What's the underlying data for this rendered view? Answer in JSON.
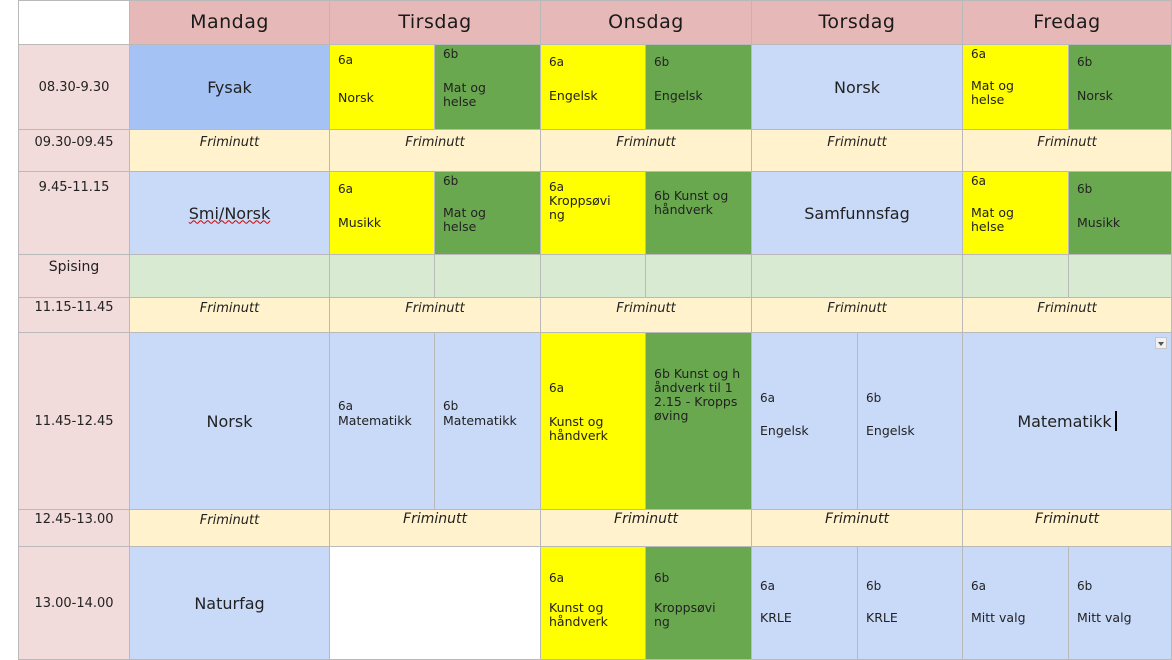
{
  "days": [
    "Mandag",
    "Tirsdag",
    "Onsdag",
    "Torsdag",
    "Fredag"
  ],
  "times": [
    "08.30-9.30",
    "09.30-09.45",
    "9.45-11.15",
    "Spising",
    "11.15-11.45",
    "11.45-12.45",
    "12.45-13.00",
    "13.00-14.00"
  ],
  "break_label": "Friminutt",
  "row1": {
    "mon": "Fysak",
    "tue_a_tag": "6a",
    "tue_a_subj": "Norsk",
    "tue_b_tag": "6b",
    "tue_b_subj": "Mat og helse",
    "wed_a_tag": "6a",
    "wed_a_subj": "Engelsk",
    "wed_b_tag": "6b",
    "wed_b_subj": "Engelsk",
    "thu": "Norsk",
    "fri_a_tag": "6a",
    "fri_a_subj": "Mat og helse",
    "fri_b_tag": "6b",
    "fri_b_subj": "Norsk"
  },
  "row3": {
    "mon": "Smi/Norsk",
    "tue_a_tag": "6a",
    "tue_a_subj": "Musikk",
    "tue_b_tag": "6b",
    "tue_b_subj": "Mat og helse",
    "wed_a_tag": "6a",
    "wed_a_subj": "Kroppsøving",
    "wed_b": "6b Kunst og håndverk",
    "thu": "Samfunnsfag",
    "fri_a_tag": "6a",
    "fri_a_subj": "Mat og helse",
    "fri_b_tag": "6b",
    "fri_b_subj": "Musikk"
  },
  "row6": {
    "mon": "Norsk",
    "tue_a_tag": "6a",
    "tue_a_subj": "Matematikk",
    "tue_b_tag": "6b",
    "tue_b_subj": "Matematikk",
    "wed_a_tag": "6a",
    "wed_a_subj": "Kunst og håndverk",
    "wed_b": "6b Kunst og håndverk til 12.15 - Kroppsøving",
    "thu_a_tag": "6a",
    "thu_a_subj": "Engelsk",
    "thu_b_tag": "6b",
    "thu_b_subj": "Engelsk",
    "fri": "Matematikk"
  },
  "row8": {
    "mon": "Naturfag",
    "wed_a_tag": "6a",
    "wed_a_subj": "Kunst og håndverk",
    "wed_b_tag": "6b",
    "wed_b_subj": "Kroppsøving",
    "thu_a_tag": "6a",
    "thu_a_subj": "KRLE",
    "thu_b_tag": "6b",
    "thu_b_subj": "KRLE",
    "fri_a_tag": "6a",
    "fri_a_subj": "Mitt valg",
    "fri_b_tag": "6b",
    "fri_b_subj": "Mitt valg"
  },
  "colors": {
    "header": "#e6b8b7",
    "time": "#f2dcdb",
    "break": "#fff2cc",
    "blue": "#c9daf8",
    "yellow": "#ffff00",
    "green": "#6aa84f",
    "lightgreen": "#d9ead3"
  }
}
